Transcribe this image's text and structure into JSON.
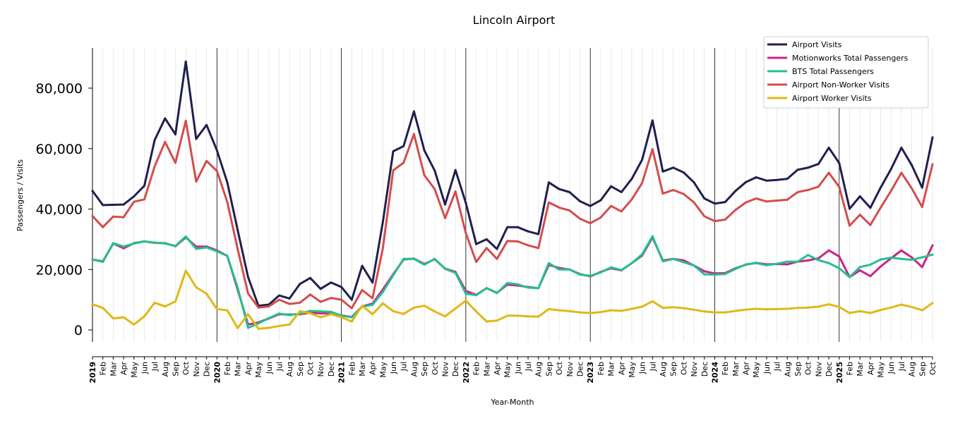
{
  "chart_data": {
    "type": "line",
    "title": "Lincoln Airport",
    "xlabel": "Year-Month",
    "ylabel": "Passengers / Visits",
    "ylim": [
      -4000,
      93000
    ],
    "yticks": [
      0,
      20000,
      40000,
      60000,
      80000
    ],
    "ytick_labels": [
      "0",
      "20,000",
      "40,000",
      "60,000",
      "80,000"
    ],
    "legend_position": "top-right",
    "grid": "vertical monthly gridlines, black lines at year boundaries",
    "x": [
      "2019",
      "Feb",
      "Mar",
      "Apr",
      "May",
      "Jun",
      "Jul",
      "Aug",
      "Sep",
      "Oct",
      "Nov",
      "Dec",
      "2020",
      "Feb",
      "Mar",
      "Apr",
      "May",
      "Jun",
      "Jul",
      "Aug",
      "Sep",
      "Oct",
      "Nov",
      "Dec",
      "2021",
      "Feb",
      "Mar",
      "Apr",
      "May",
      "Jun",
      "Jul",
      "Aug",
      "Sep",
      "Oct",
      "Nov",
      "Dec",
      "2022",
      "Feb",
      "Mar",
      "Apr",
      "May",
      "Jun",
      "Jul",
      "Aug",
      "Sep",
      "Oct",
      "Nov",
      "Dec",
      "2023",
      "Feb",
      "Mar",
      "Apr",
      "May",
      "Jun",
      "Jul",
      "Aug",
      "Sep",
      "Oct",
      "Nov",
      "Dec",
      "2024",
      "Feb",
      "Mar",
      "Apr",
      "May",
      "Jun",
      "Jul",
      "Aug",
      "Sep",
      "Oct",
      "Nov",
      "Dec",
      "2025",
      "Feb",
      "Mar",
      "Apr",
      "May",
      "Jun",
      "Jul",
      "Aug",
      "Sep",
      "Oct"
    ],
    "series": [
      {
        "name": "Airport Visits",
        "color": "#1f1f4f",
        "values": [
          46000,
          41300,
          41400,
          41500,
          44200,
          47700,
          62800,
          70000,
          64700,
          88800,
          63200,
          67800,
          59400,
          48800,
          33000,
          17500,
          8000,
          8400,
          11400,
          10400,
          15200,
          17200,
          13600,
          15700,
          14200,
          10000,
          21200,
          15700,
          35800,
          59100,
          60800,
          72300,
          59400,
          52700,
          41500,
          52900,
          42000,
          28400,
          30000,
          26800,
          34000,
          34000,
          32600,
          31700,
          48800,
          46600,
          45600,
          42600,
          41000,
          42900,
          47500,
          45600,
          50000,
          56300,
          69300,
          52400,
          53700,
          52100,
          48800,
          43500,
          41800,
          42300,
          46000,
          48900,
          50500,
          49400,
          49600,
          50000,
          53000,
          53700,
          54900,
          60300,
          55200,
          40100,
          44200,
          40400,
          47100,
          53200,
          60300,
          54500,
          47100,
          63700
        ]
      },
      {
        "name": "Motionworks Total Passengers",
        "color": "#cc2288",
        "values": [
          23300,
          22700,
          28600,
          27000,
          28700,
          29300,
          28800,
          28700,
          27700,
          30600,
          27600,
          27600,
          26300,
          24500,
          13300,
          1800,
          2500,
          3800,
          5200,
          5100,
          5200,
          5700,
          5500,
          5500,
          4800,
          4300,
          7800,
          8700,
          13400,
          18400,
          23300,
          23600,
          21800,
          23400,
          20300,
          19200,
          12900,
          11600,
          13800,
          12300,
          15000,
          14700,
          14200,
          13800,
          21500,
          20500,
          20000,
          18500,
          17700,
          19200,
          20400,
          19700,
          22100,
          24600,
          30600,
          23000,
          23500,
          23000,
          21300,
          19400,
          18700,
          18800,
          20400,
          21600,
          22200,
          21700,
          21800,
          21700,
          22600,
          23000,
          23700,
          26300,
          24300,
          17500,
          19700,
          17800,
          21000,
          23700,
          26300,
          24000,
          20800,
          28000
        ]
      },
      {
        "name": "BTS Total Passengers",
        "color": "#22c090",
        "values": [
          23300,
          22500,
          28700,
          27600,
          28600,
          29300,
          28900,
          28600,
          27800,
          30900,
          26800,
          27300,
          26000,
          24500,
          14000,
          700,
          2200,
          3900,
          5400,
          4900,
          5400,
          6300,
          6100,
          6000,
          4700,
          4200,
          7700,
          8300,
          12600,
          18100,
          23500,
          23500,
          21600,
          23500,
          20200,
          18900,
          12000,
          11500,
          13800,
          12200,
          15500,
          15100,
          14000,
          13800,
          22100,
          20000,
          20000,
          18300,
          17900,
          19000,
          20700,
          19800,
          22100,
          25000,
          31000,
          22700,
          23500,
          22400,
          21300,
          18400,
          18300,
          18500,
          20200,
          21700,
          22100,
          21400,
          21900,
          22600,
          22600,
          24800,
          23100,
          22100,
          20400,
          17500,
          20800,
          21600,
          23300,
          23900,
          23500,
          23200,
          24000,
          24900
        ]
      },
      {
        "name": "Airport Non-Worker Visits",
        "color": "#d44c4c",
        "values": [
          37700,
          34000,
          37500,
          37300,
          42400,
          43200,
          54100,
          62200,
          55300,
          69200,
          49100,
          55900,
          52600,
          42300,
          26700,
          12100,
          7400,
          7800,
          10000,
          8600,
          9000,
          11700,
          9300,
          10600,
          10000,
          7200,
          13200,
          10500,
          27100,
          52800,
          55300,
          64800,
          51200,
          46600,
          37000,
          45800,
          32000,
          22500,
          27100,
          23500,
          29400,
          29300,
          28000,
          27100,
          42200,
          40500,
          39500,
          36800,
          35300,
          37200,
          41000,
          39200,
          43200,
          48600,
          59800,
          45100,
          46300,
          45000,
          42200,
          37600,
          36000,
          36500,
          39700,
          42200,
          43500,
          42500,
          42800,
          43100,
          45600,
          46300,
          47400,
          52000,
          47300,
          34500,
          38100,
          34700,
          40500,
          46000,
          52000,
          46800,
          40700,
          54800
        ]
      },
      {
        "name": "Airport Worker Visits",
        "color": "#e0b815",
        "values": [
          8500,
          7300,
          3800,
          4200,
          1800,
          4500,
          9000,
          7800,
          9400,
          19600,
          14100,
          12000,
          6900,
          6500,
          600,
          5200,
          400,
          700,
          1300,
          1800,
          6200,
          5500,
          4200,
          5200,
          4200,
          2800,
          8000,
          5200,
          8800,
          6200,
          5300,
          7400,
          8000,
          6100,
          4500,
          7100,
          9700,
          6100,
          2800,
          3100,
          4700,
          4700,
          4500,
          4400,
          6900,
          6500,
          6200,
          5800,
          5600,
          5900,
          6500,
          6300,
          7000,
          7700,
          9500,
          7300,
          7500,
          7200,
          6700,
          6100,
          5800,
          5800,
          6300,
          6700,
          7000,
          6800,
          6900,
          7000,
          7300,
          7400,
          7700,
          8500,
          7600,
          5600,
          6200,
          5600,
          6600,
          7400,
          8400,
          7600,
          6500,
          8900
        ]
      }
    ]
  }
}
